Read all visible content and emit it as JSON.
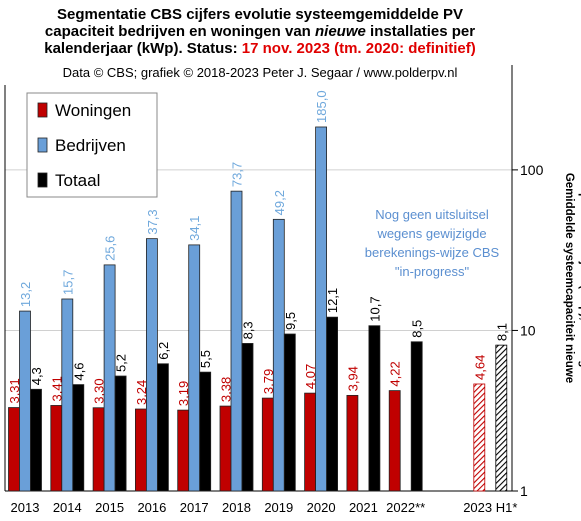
{
  "chart_data": {
    "type": "bar",
    "title": {
      "line1": "Segmentatie  CBS cijfers evolutie systeemgemiddelde  PV",
      "line2a": "capaciteit  bedrijven en woningen van ",
      "line2b": "nieuwe",
      "line2c": " installaties  per",
      "line3a": "kalenderjaar (kWp). Status: ",
      "line3b": "17 nov. 2023 (tm. 2020: definitief)"
    },
    "subtitle": "Data © CBS; grafiek © 2018-2023  Peter J. Segaar / www.polderpv.nl",
    "annotation": [
      "Nog geen uitsluitsel",
      "wegens gewijzigde",
      "berekenings-wijze CBS",
      "\"in-progress\""
    ],
    "annotation_color": "#5b8fd0",
    "y_label": [
      "Gemiddelde systeemcapaciteit nieuwe",
      "installaties per kalenderjaar (kWp), Y-as logarithmisch"
    ],
    "categories": [
      "2013",
      "2014",
      "2015",
      "2016",
      "2017",
      "2018",
      "2019",
      "2020",
      "2021",
      "2022**",
      null,
      "2023 H1*"
    ],
    "hatched_categories": [
      11
    ],
    "series": [
      {
        "name": "Woningen",
        "color": "#c00000",
        "label_color": "#c00000",
        "values": [
          3.31,
          3.41,
          3.3,
          3.24,
          3.19,
          3.38,
          3.79,
          4.07,
          3.94,
          4.22,
          null,
          4.64
        ],
        "value_labels": [
          "3,31",
          "3,41",
          "3,30",
          "3,24",
          "3,19",
          "3,38",
          "3,79",
          "4,07",
          "3,94",
          "4,22",
          null,
          "4,64"
        ]
      },
      {
        "name": "Bedrijven",
        "color": "#6a9fd8",
        "label_color": "#6fa8dc",
        "values": [
          13.2,
          15.7,
          25.6,
          37.3,
          34.1,
          73.7,
          49.2,
          185.0,
          null,
          null,
          null,
          null
        ],
        "value_labels": [
          "13,2",
          "15,7",
          "25,6",
          "37,3",
          "34,1",
          "73,7",
          "49,2",
          "185,0",
          null,
          null,
          null,
          null
        ]
      },
      {
        "name": "Totaal",
        "color": "#000000",
        "label_color": "#000000",
        "values": [
          4.3,
          4.6,
          5.2,
          6.2,
          5.5,
          8.3,
          9.5,
          12.1,
          10.7,
          8.5,
          null,
          8.1
        ],
        "value_labels": [
          "4,3",
          "4,6",
          "5,2",
          "6,2",
          "5,5",
          "8,3",
          "9,5",
          "12,1",
          "10,7",
          "8,5",
          null,
          "8,1"
        ]
      }
    ],
    "ylim": [
      1,
      450
    ],
    "yticks": [
      1,
      10,
      100
    ],
    "log_scale": true,
    "grid": true,
    "y_axis_side": "right",
    "legend_position": "upper left"
  }
}
